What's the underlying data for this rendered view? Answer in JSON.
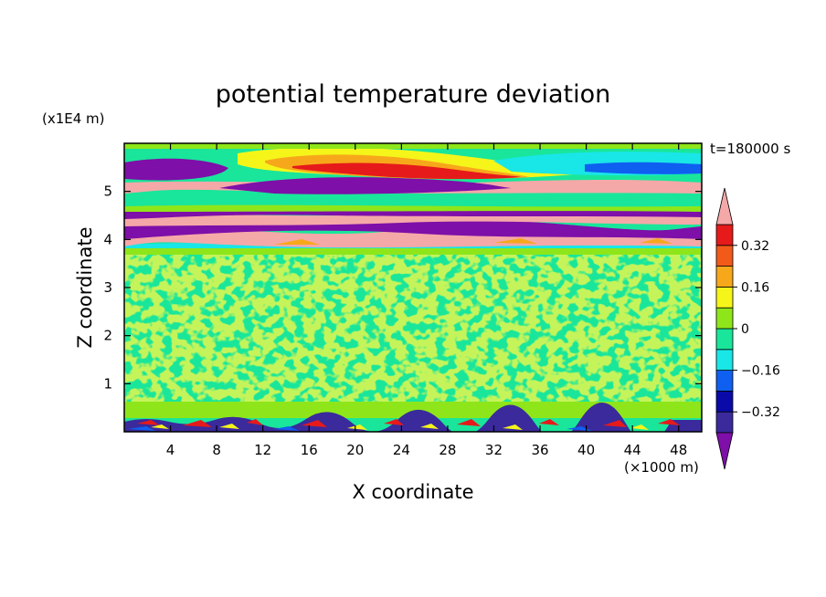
{
  "chart_data": {
    "type": "heatmap",
    "title": "potential temperature deviation",
    "xlabel": "X coordinate",
    "ylabel": "Z coordinate",
    "x_unit": "(×1000 m)",
    "y_unit": "(x1E4 m)",
    "time_label": "t=180000 s",
    "xlim": [
      0,
      50
    ],
    "ylim": [
      0,
      6
    ],
    "x_ticks": [
      4,
      8,
      12,
      16,
      20,
      24,
      28,
      32,
      36,
      40,
      44,
      48
    ],
    "y_ticks": [
      1,
      2,
      3,
      4,
      5
    ],
    "colorbar": {
      "levels": [
        -0.48,
        -0.4,
        -0.32,
        -0.24,
        -0.16,
        -0.08,
        0,
        0.08,
        0.16,
        0.24,
        0.32,
        0.4,
        0.48
      ],
      "tick_labels": [
        "0.32",
        "0.16",
        "0",
        "−0.16",
        "−0.32"
      ],
      "tick_values": [
        0.32,
        0.16,
        0,
        -0.16,
        -0.32
      ],
      "colors": [
        "#7e0fa8",
        "#3a2a9c",
        "#0a0aa8",
        "#0f5ff0",
        "#19e6e6",
        "#19e69a",
        "#8ee61a",
        "#f5f51a",
        "#f7a81a",
        "#f25a1a",
        "#e61a1a",
        "#f5a8a8"
      ],
      "extend": "both"
    },
    "bands": [
      {
        "z_range": [
          0.0,
          0.25
        ],
        "description": "mixed near-surface",
        "value": 0.0
      },
      {
        "z_range": [
          0.25,
          3.85
        ],
        "description": "noisy field near zero",
        "value": 0.03
      },
      {
        "z_range": [
          3.85,
          4.6
        ],
        "description": "alternating strong +/- layers",
        "value": 0.0
      },
      {
        "z_range": [
          4.6,
          5.35
        ],
        "description": "alternating +/- layers",
        "value": 0.0
      },
      {
        "z_range": [
          5.35,
          6.0
        ],
        "description": "upper region with warm anomaly",
        "value": 0.1
      }
    ]
  }
}
